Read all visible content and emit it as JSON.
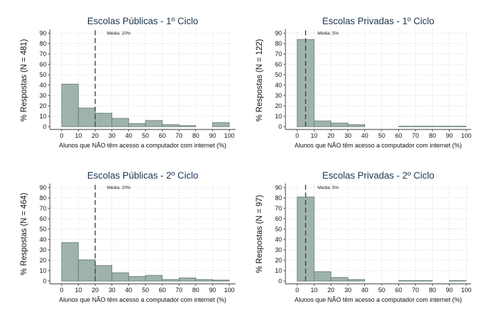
{
  "colors": {
    "bar_fill": "#9fb3ab",
    "bar_stroke": "#5f776f",
    "mean_line": "#2e4a66",
    "grid": "#d3d3d3",
    "title": "#1c3550"
  },
  "chart_data": [
    {
      "type": "bar",
      "title": "Escolas Públicas - 1º Ciclo",
      "ylabel": "% Respostas (N = 481)",
      "xlabel": "Alunos que NÃO têm acesso a computador com internet (%)",
      "annotation": "Média:  20%",
      "mean": 20,
      "bin_edges": [
        0,
        10,
        20,
        30,
        40,
        50,
        60,
        70,
        80,
        90,
        100
      ],
      "values": [
        41,
        18,
        13,
        8,
        3,
        6,
        2,
        1,
        0,
        4
      ],
      "xlim": [
        0,
        100
      ],
      "ylim": [
        0,
        90
      ],
      "xticks": [
        0,
        10,
        20,
        30,
        40,
        50,
        60,
        70,
        80,
        90,
        100
      ],
      "yticks": [
        0,
        10,
        20,
        30,
        40,
        50,
        60,
        70,
        80,
        90
      ],
      "grid": true
    },
    {
      "type": "bar",
      "title": "Escolas Privadas - 1º Ciclo",
      "ylabel": "% Respostas (N = 122)",
      "xlabel": "Alunos que NÃO têm acesso a computador com internet (%)",
      "annotation": "Média:  5%",
      "mean": 5,
      "bin_edges": [
        0,
        10,
        20,
        30,
        40,
        50,
        60,
        70,
        80,
        90,
        100
      ],
      "values": [
        84,
        5.5,
        3.5,
        2,
        0,
        0,
        0.5,
        0.5,
        0.5,
        0.5
      ],
      "xlim": [
        0,
        100
      ],
      "ylim": [
        0,
        90
      ],
      "xticks": [
        0,
        10,
        20,
        30,
        40,
        50,
        60,
        70,
        80,
        90,
        100
      ],
      "yticks": [
        0,
        10,
        20,
        30,
        40,
        50,
        60,
        70,
        80,
        90
      ],
      "grid": true
    },
    {
      "type": "bar",
      "title": "Escolas Públicas - 2º Ciclo",
      "ylabel": "% Respostas (N = 464)",
      "xlabel": "Alunos que NÃO têm acesso a computador com internet (%)",
      "annotation": "Média:  20%",
      "mean": 20,
      "bin_edges": [
        0,
        10,
        20,
        30,
        40,
        50,
        60,
        70,
        80,
        90,
        100
      ],
      "values": [
        37,
        20.5,
        15,
        8,
        4.5,
        5.5,
        1.5,
        3,
        1.5,
        1
      ],
      "xlim": [
        0,
        100
      ],
      "ylim": [
        0,
        90
      ],
      "xticks": [
        0,
        10,
        20,
        30,
        40,
        50,
        60,
        70,
        80,
        90,
        100
      ],
      "yticks": [
        0,
        10,
        20,
        30,
        40,
        50,
        60,
        70,
        80,
        90
      ],
      "grid": true
    },
    {
      "type": "bar",
      "title": "Escolas Privadas - 2º Ciclo",
      "ylabel": "% Respostas (N =  97)",
      "xlabel": "Alunos que NÃO têm acesso a computador com internet (%)",
      "annotation": "Média:  5%",
      "mean": 5,
      "bin_edges": [
        0,
        10,
        20,
        30,
        40,
        50,
        60,
        70,
        80,
        90,
        100
      ],
      "values": [
        81,
        9,
        3.5,
        1.5,
        0,
        0,
        0.5,
        0.5,
        0,
        0.5
      ],
      "xlim": [
        0,
        100
      ],
      "ylim": [
        0,
        90
      ],
      "xticks": [
        0,
        10,
        20,
        30,
        40,
        50,
        60,
        70,
        80,
        90,
        100
      ],
      "yticks": [
        0,
        10,
        20,
        30,
        40,
        50,
        60,
        70,
        80,
        90
      ],
      "grid": true
    }
  ]
}
